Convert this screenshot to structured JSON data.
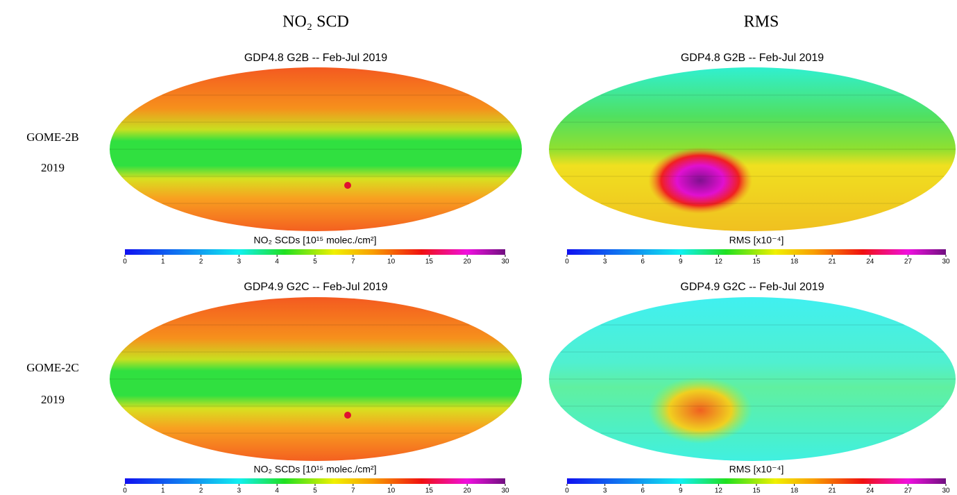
{
  "columns": [
    "NO₂ SCD",
    "RMS"
  ],
  "rows": [
    {
      "label": "GOME-2B",
      "year": "2019"
    },
    {
      "label": "GOME-2C",
      "year": "2019"
    }
  ],
  "panels": [
    {
      "title": "GDP4.8 G2B  -- Feb-Jul 2019",
      "colorbar": {
        "label": "NO₂ SCDs [10¹⁵ molec./cm²]",
        "ticks": [
          0,
          1,
          2,
          3,
          4,
          5,
          7,
          10,
          15,
          20,
          30
        ]
      }
    },
    {
      "title": "GDP4.8 G2B  -- Feb-Jul 2019",
      "colorbar": {
        "label": "RMS [x10⁻⁴]",
        "ticks": [
          0,
          3,
          6,
          9,
          12,
          15,
          18,
          21,
          24,
          27,
          30
        ]
      }
    },
    {
      "title": "GDP4.9 G2C  -- Feb-Jul 2019",
      "colorbar": {
        "label": "NO₂ SCDs [10¹⁵ molec./cm²]",
        "ticks": [
          0,
          1,
          2,
          3,
          4,
          5,
          7,
          10,
          15,
          20,
          30
        ]
      }
    },
    {
      "title": "GDP4.9 G2C  -- Feb-Jul 2019",
      "colorbar": {
        "label": "RMS [x10⁻⁴]",
        "ticks": [
          0,
          3,
          6,
          9,
          12,
          15,
          18,
          21,
          24,
          27,
          30
        ]
      }
    }
  ]
}
